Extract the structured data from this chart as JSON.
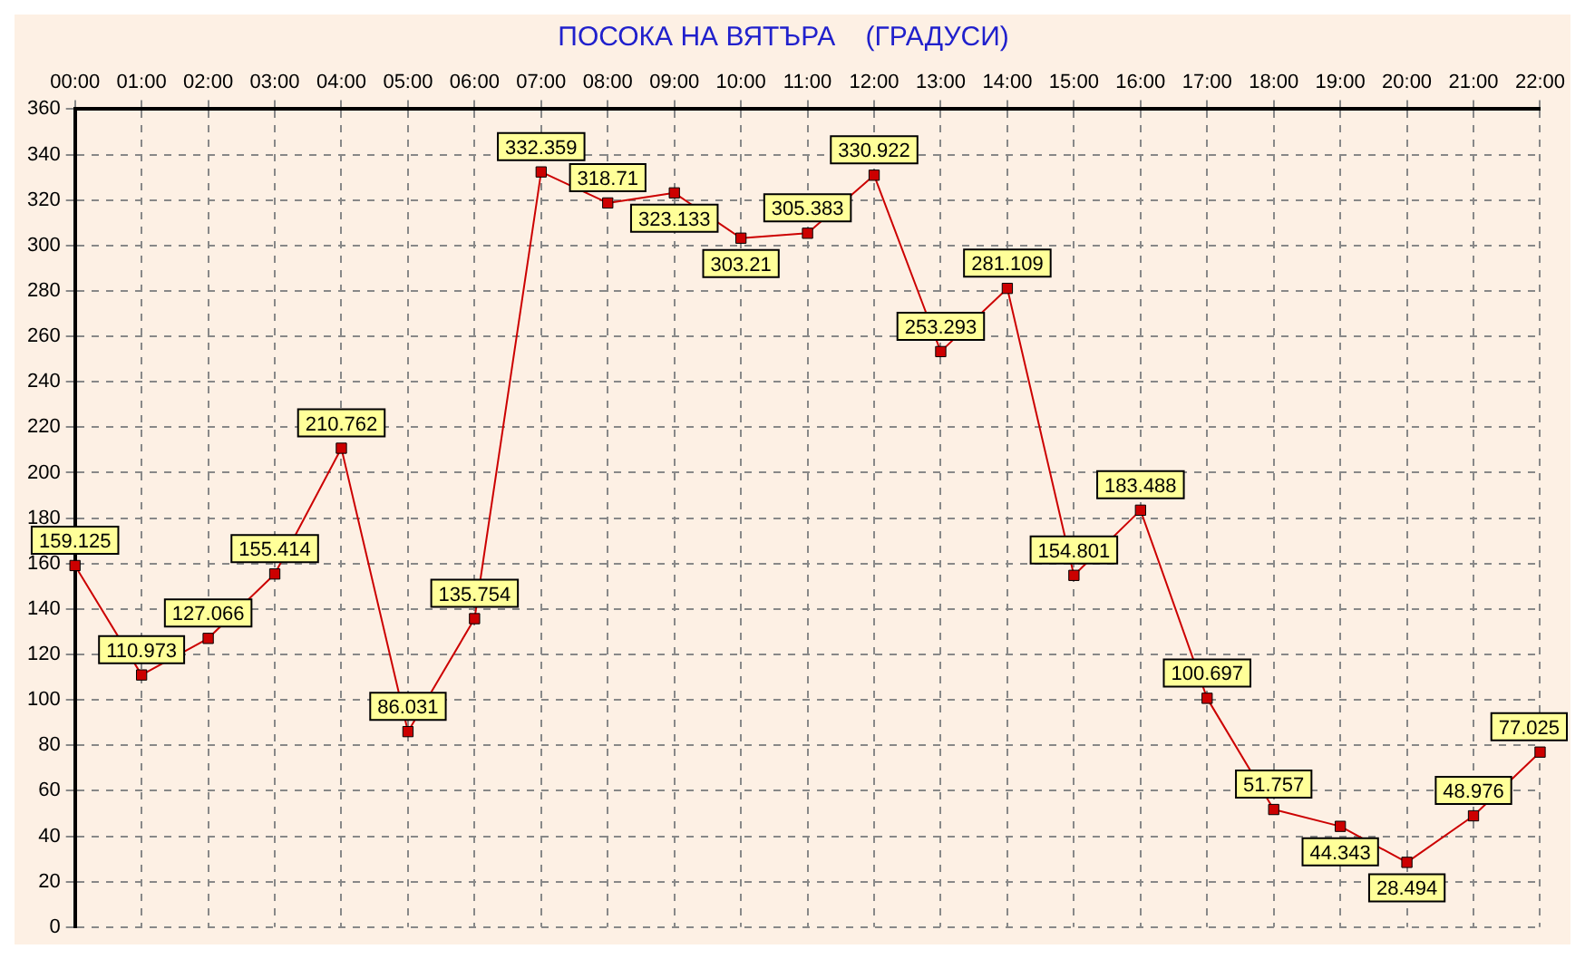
{
  "chart_data": {
    "type": "line",
    "title": "ПОСОКА НА ВЯТЪРА    (ГРАДУСИ)",
    "categories": [
      "00:00",
      "01:00",
      "02:00",
      "03:00",
      "04:00",
      "05:00",
      "06:00",
      "07:00",
      "08:00",
      "09:00",
      "10:00",
      "11:00",
      "12:00",
      "13:00",
      "14:00",
      "15:00",
      "16:00",
      "17:00",
      "18:00",
      "19:00",
      "20:00",
      "21:00",
      "22:00"
    ],
    "series": [
      {
        "color": "#cc0000",
        "values": [
          159.125,
          110.973,
          127.066,
          155.414,
          210.762,
          86.031,
          135.754,
          332.359,
          318.71,
          323.133,
          303.21,
          305.383,
          330.922,
          253.293,
          281.109,
          154.801,
          183.488,
          100.697,
          51.757,
          44.343,
          28.494,
          48.976,
          77.025
        ]
      }
    ],
    "ylim": [
      0,
      360
    ],
    "yticks": [
      0,
      20,
      40,
      60,
      80,
      100,
      120,
      140,
      160,
      180,
      200,
      220,
      240,
      260,
      280,
      300,
      320,
      340,
      360
    ],
    "grid": true,
    "legend": false,
    "marker": "square",
    "line_style": "solid",
    "data_labels": true
  }
}
